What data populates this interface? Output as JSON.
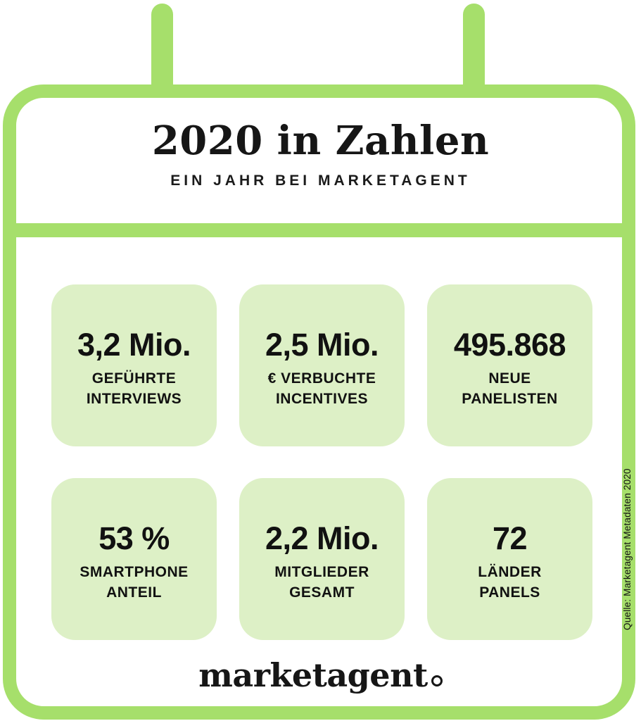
{
  "header": {
    "title": "2020 in Zahlen",
    "subtitle": "EIN JAHR BEI MARKETAGENT"
  },
  "stats": [
    {
      "value": "3,2 Mio.",
      "label_lines": [
        "GEFÜHRTE",
        "INTERVIEWS"
      ]
    },
    {
      "value": "2,5 Mio.",
      "label_lines": [
        "€ VERBUCHTE",
        "INCENTIVES"
      ]
    },
    {
      "value": "495.868",
      "label_lines": [
        "NEUE",
        "PANELISTEN"
      ]
    },
    {
      "value": "53 %",
      "label_lines": [
        "SMARTPHONE",
        "ANTEIL"
      ]
    },
    {
      "value": "2,2 Mio.",
      "label_lines": [
        "MITGLIEDER",
        "GESAMT"
      ]
    },
    {
      "value": "72",
      "label_lines": [
        "LÄNDER",
        "PANELS"
      ]
    }
  ],
  "footer": {
    "logo_text": "marketagent"
  },
  "source_note": "Quelle: Marketagent Metadaten 2020",
  "colors": {
    "accent_green": "#a6df6b",
    "card_green": "#ddf0c6",
    "text": "#141414"
  }
}
